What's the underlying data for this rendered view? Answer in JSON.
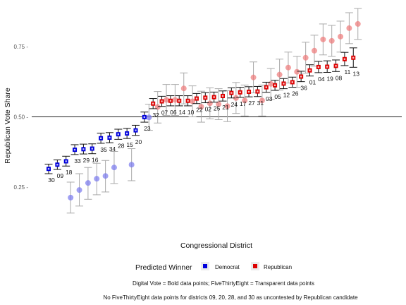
{
  "chart_data": {
    "type": "scatter",
    "xlabel": "Congressional District",
    "ylabel": "Republican Vote Share",
    "ylim": [
      0.15,
      0.89
    ],
    "y_ticks": [
      0.25,
      0.5,
      0.75
    ],
    "y_tick_labels": [
      "0.25 -",
      "0.50 -",
      "0.75 -"
    ],
    "reference_line": 0.5,
    "legend": {
      "title": "Predicted Winner",
      "placement": "bottom",
      "entries": [
        {
          "label": "Democrat",
          "color": "#0000dd"
        },
        {
          "label": "Republican",
          "color": "#dd0000"
        }
      ]
    },
    "captions": [
      "Digital Vote = Bold data points; FiveThirtyEight = Transparent data points",
      "No FiveThirtyEight data points for districts 09, 20, 28, and 30 as uncontested by Republican candidate"
    ],
    "colors": {
      "democrat": "#0000dd",
      "republican": "#dd0000",
      "fte_democrat": "#7777ee",
      "fte_republican": "#ee7777",
      "error_bar_bold": "#111111",
      "error_bar_fte": "#aaaaaa"
    },
    "series": [
      {
        "name": "Digital Vote",
        "points": [
          {
            "district": "30",
            "value": 0.315,
            "low": 0.298,
            "high": 0.332,
            "winner": "Democrat"
          },
          {
            "district": "09",
            "value": 0.33,
            "low": 0.313,
            "high": 0.347,
            "winner": "Democrat"
          },
          {
            "district": "18",
            "value": 0.342,
            "low": 0.325,
            "high": 0.36,
            "winner": "Democrat"
          },
          {
            "district": "33",
            "value": 0.383,
            "low": 0.366,
            "high": 0.401,
            "winner": "Democrat"
          },
          {
            "district": "29",
            "value": 0.385,
            "low": 0.368,
            "high": 0.403,
            "winner": "Democrat"
          },
          {
            "district": "16",
            "value": 0.387,
            "low": 0.369,
            "high": 0.404,
            "winner": "Democrat"
          },
          {
            "district": "35",
            "value": 0.424,
            "low": 0.406,
            "high": 0.442,
            "winner": "Democrat"
          },
          {
            "district": "34",
            "value": 0.426,
            "low": 0.408,
            "high": 0.444,
            "winner": "Democrat"
          },
          {
            "district": "28",
            "value": 0.438,
            "low": 0.42,
            "high": 0.456,
            "winner": "Democrat"
          },
          {
            "district": "15",
            "value": 0.441,
            "low": 0.423,
            "high": 0.459,
            "winner": "Democrat"
          },
          {
            "district": "20",
            "value": 0.452,
            "low": 0.434,
            "high": 0.47,
            "winner": "Democrat"
          },
          {
            "district": "23",
            "value": 0.499,
            "low": 0.481,
            "high": 0.517,
            "winner": "Democrat"
          },
          {
            "district": "32",
            "value": 0.547,
            "low": 0.529,
            "high": 0.565,
            "winner": "Republican"
          },
          {
            "district": "07",
            "value": 0.555,
            "low": 0.537,
            "high": 0.573,
            "winner": "Republican"
          },
          {
            "district": "06",
            "value": 0.557,
            "low": 0.539,
            "high": 0.575,
            "winner": "Republican"
          },
          {
            "district": "14",
            "value": 0.557,
            "low": 0.539,
            "high": 0.575,
            "winner": "Republican"
          },
          {
            "district": "10",
            "value": 0.557,
            "low": 0.539,
            "high": 0.575,
            "winner": "Republican"
          },
          {
            "district": "22",
            "value": 0.565,
            "low": 0.547,
            "high": 0.583,
            "winner": "Republican"
          },
          {
            "district": "02",
            "value": 0.568,
            "low": 0.55,
            "high": 0.586,
            "winner": "Republican"
          },
          {
            "district": "25",
            "value": 0.57,
            "low": 0.552,
            "high": 0.588,
            "winner": "Republican"
          },
          {
            "district": "21",
            "value": 0.574,
            "low": 0.556,
            "high": 0.592,
            "winner": "Republican"
          },
          {
            "district": "24",
            "value": 0.585,
            "low": 0.567,
            "high": 0.603,
            "winner": "Republican"
          },
          {
            "district": "17",
            "value": 0.587,
            "low": 0.569,
            "high": 0.605,
            "winner": "Republican"
          },
          {
            "district": "27",
            "value": 0.589,
            "low": 0.571,
            "high": 0.607,
            "winner": "Republican"
          },
          {
            "district": "31",
            "value": 0.59,
            "low": 0.572,
            "high": 0.608,
            "winner": "Republican"
          },
          {
            "district": "03",
            "value": 0.605,
            "low": 0.587,
            "high": 0.623,
            "winner": "Republican"
          },
          {
            "district": "05",
            "value": 0.612,
            "low": 0.594,
            "high": 0.63,
            "winner": "Republican"
          },
          {
            "district": "12",
            "value": 0.618,
            "low": 0.6,
            "high": 0.636,
            "winner": "Republican"
          },
          {
            "district": "26",
            "value": 0.623,
            "low": 0.605,
            "high": 0.641,
            "winner": "Republican"
          },
          {
            "district": "36",
            "value": 0.643,
            "low": 0.625,
            "high": 0.662,
            "winner": "Republican"
          },
          {
            "district": "01",
            "value": 0.665,
            "low": 0.645,
            "high": 0.685,
            "winner": "Republican"
          },
          {
            "district": "04",
            "value": 0.677,
            "low": 0.657,
            "high": 0.697,
            "winner": "Republican"
          },
          {
            "district": "19",
            "value": 0.678,
            "low": 0.658,
            "high": 0.699,
            "winner": "Republican"
          },
          {
            "district": "08",
            "value": 0.681,
            "low": 0.661,
            "high": 0.702,
            "winner": "Republican"
          },
          {
            "district": "11",
            "value": 0.705,
            "low": 0.682,
            "high": 0.729,
            "winner": "Republican"
          },
          {
            "district": "13",
            "value": 0.71,
            "low": 0.676,
            "high": 0.745,
            "winner": "Republican"
          }
        ]
      },
      {
        "name": "FiveThirtyEight",
        "points": [
          {
            "district": "18",
            "value": 0.213,
            "low": 0.158,
            "high": 0.268
          },
          {
            "district": "33",
            "value": 0.24,
            "low": 0.183,
            "high": 0.298
          },
          {
            "district": "29",
            "value": 0.265,
            "low": 0.207,
            "high": 0.32
          },
          {
            "district": "16",
            "value": 0.28,
            "low": 0.223,
            "high": 0.335
          },
          {
            "district": "35",
            "value": 0.29,
            "low": 0.233,
            "high": 0.345
          },
          {
            "district": "34",
            "value": 0.32,
            "low": 0.263,
            "high": 0.377
          },
          {
            "district": "15",
            "value": 0.33,
            "low": 0.273,
            "high": 0.387
          },
          {
            "district": "32",
            "value": 0.535,
            "low": 0.478,
            "high": 0.59
          },
          {
            "district": "23",
            "value": 0.498,
            "low": 0.452,
            "high": 0.545
          },
          {
            "district": "07",
            "value": 0.56,
            "low": 0.505,
            "high": 0.615
          },
          {
            "district": "06",
            "value": 0.56,
            "low": 0.505,
            "high": 0.615
          },
          {
            "district": "14",
            "value": 0.601,
            "low": 0.546,
            "high": 0.656
          },
          {
            "district": "10",
            "value": 0.555,
            "low": 0.5,
            "high": 0.61
          },
          {
            "district": "22",
            "value": 0.536,
            "low": 0.481,
            "high": 0.591
          },
          {
            "district": "02",
            "value": 0.548,
            "low": 0.493,
            "high": 0.603
          },
          {
            "district": "25",
            "value": 0.545,
            "low": 0.49,
            "high": 0.6
          },
          {
            "district": "21",
            "value": 0.538,
            "low": 0.483,
            "high": 0.593
          },
          {
            "district": "24",
            "value": 0.567,
            "low": 0.512,
            "high": 0.622
          },
          {
            "district": "17",
            "value": 0.558,
            "low": 0.503,
            "high": 0.613
          },
          {
            "district": "27",
            "value": 0.64,
            "low": 0.585,
            "high": 0.695
          },
          {
            "district": "31",
            "value": 0.558,
            "low": 0.503,
            "high": 0.613
          },
          {
            "district": "03",
            "value": 0.617,
            "low": 0.562,
            "high": 0.672
          },
          {
            "district": "05",
            "value": 0.65,
            "low": 0.595,
            "high": 0.705
          },
          {
            "district": "12",
            "value": 0.675,
            "low": 0.62,
            "high": 0.73
          },
          {
            "district": "26",
            "value": 0.66,
            "low": 0.605,
            "high": 0.715
          },
          {
            "district": "36",
            "value": 0.71,
            "low": 0.655,
            "high": 0.765
          },
          {
            "district": "01",
            "value": 0.735,
            "low": 0.68,
            "high": 0.79
          },
          {
            "district": "04",
            "value": 0.775,
            "low": 0.72,
            "high": 0.83
          },
          {
            "district": "19",
            "value": 0.77,
            "low": 0.715,
            "high": 0.825
          },
          {
            "district": "08",
            "value": 0.785,
            "low": 0.73,
            "high": 0.84
          },
          {
            "district": "11",
            "value": 0.815,
            "low": 0.76,
            "high": 0.87
          },
          {
            "district": "13",
            "value": 0.83,
            "low": 0.775,
            "high": 0.885
          }
        ]
      }
    ]
  }
}
